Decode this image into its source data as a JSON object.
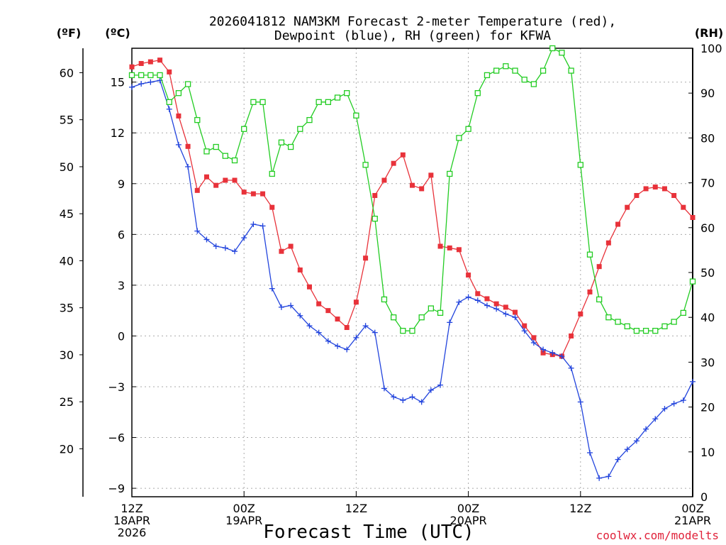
{
  "chart_data": {
    "type": "line",
    "title_line1": "2026041812 NAM3KM Forecast 2-meter Temperature (red),",
    "title_line2": "Dewpoint (blue), RH (green) for KFWA",
    "xlabel": "Forecast Time (UTC)",
    "credit": "coolwx.com/modelts",
    "units": {
      "fahrenheit": "(ºF)",
      "celsius": "(ºC)",
      "rh": "(RH)"
    },
    "x_hours_start": 0,
    "x_hours_end": 60,
    "xlim": [
      0,
      60
    ],
    "ylim_celsius": [
      -9.5,
      17
    ],
    "ylim_rh": [
      0,
      100
    ],
    "x_ticks": [
      {
        "hour": 0,
        "label1": "12Z",
        "label2": "18APR",
        "label3": "2026"
      },
      {
        "hour": 12,
        "label1": "00Z",
        "label2": "19APR",
        "label3": ""
      },
      {
        "hour": 24,
        "label1": "12Z",
        "label2": "",
        "label3": ""
      },
      {
        "hour": 36,
        "label1": "00Z",
        "label2": "20APR",
        "label3": ""
      },
      {
        "hour": 48,
        "label1": "12Z",
        "label2": "",
        "label3": ""
      },
      {
        "hour": 60,
        "label1": "00Z",
        "label2": "21APR",
        "label3": ""
      }
    ],
    "celsius_ticks": [
      "15",
      "12",
      "9",
      "6",
      "3",
      "0",
      "−3",
      "−6",
      "−9"
    ],
    "fahrenheit_ticks": [
      "60",
      "55",
      "50",
      "45",
      "40",
      "35",
      "30",
      "25",
      "20"
    ],
    "rh_ticks": [
      "100",
      "90",
      "80",
      "70",
      "60",
      "50",
      "40",
      "30",
      "20",
      "10",
      "0"
    ],
    "hours": [
      0,
      1,
      2,
      3,
      4,
      5,
      6,
      7,
      8,
      9,
      10,
      11,
      12,
      13,
      14,
      15,
      16,
      17,
      18,
      19,
      20,
      21,
      22,
      23,
      24,
      25,
      26,
      27,
      28,
      29,
      30,
      31,
      32,
      33,
      34,
      35,
      36,
      37,
      38,
      39,
      40,
      41,
      42,
      43,
      44,
      45,
      46,
      47,
      48,
      49,
      50,
      51,
      52,
      53,
      54,
      55,
      56,
      57,
      58,
      59,
      60
    ],
    "series": [
      {
        "name": "Temperature",
        "axis": "celsius",
        "color": "#e8323a",
        "marker": "filled-square",
        "values": [
          15.9,
          16.1,
          16.2,
          16.3,
          15.6,
          13.0,
          11.2,
          8.6,
          9.4,
          8.9,
          9.2,
          9.2,
          8.5,
          8.4,
          8.4,
          7.6,
          5.0,
          5.3,
          3.9,
          2.9,
          1.9,
          1.5,
          1.0,
          0.5,
          2.0,
          4.6,
          8.3,
          9.2,
          10.2,
          10.7,
          8.9,
          8.7,
          9.5,
          5.3,
          5.2,
          5.1,
          3.6,
          2.5,
          2.2,
          1.9,
          1.7,
          1.4,
          0.6,
          -0.1,
          -1.0,
          -1.1,
          -1.2,
          0.0,
          1.3,
          2.6,
          4.1,
          5.5,
          6.6,
          7.6,
          8.3,
          8.7,
          8.8,
          8.7,
          8.3,
          7.6,
          7.0
        ]
      },
      {
        "name": "Dewpoint",
        "axis": "celsius",
        "color": "#2244dd",
        "marker": "plus",
        "values": [
          14.7,
          14.9,
          15.0,
          15.1,
          13.4,
          11.3,
          10.0,
          6.2,
          5.7,
          5.3,
          5.2,
          5.0,
          5.8,
          6.6,
          6.5,
          2.8,
          1.7,
          1.8,
          1.2,
          0.6,
          0.2,
          -0.3,
          -0.6,
          -0.8,
          -0.1,
          0.6,
          0.2,
          -3.1,
          -3.6,
          -3.8,
          -3.6,
          -3.9,
          -3.2,
          -2.9,
          0.8,
          2.0,
          2.3,
          2.1,
          1.8,
          1.6,
          1.3,
          1.1,
          0.3,
          -0.4,
          -0.8,
          -1.0,
          -1.2,
          -1.9,
          -3.9,
          -6.9,
          -8.4,
          -8.3,
          -7.3,
          -6.7,
          -6.2,
          -5.5,
          -4.9,
          -4.3,
          -4.0,
          -3.8,
          -2.7
        ]
      },
      {
        "name": "RH",
        "axis": "rh",
        "color": "#22cc22",
        "marker": "open-square",
        "values": [
          94,
          94,
          94,
          94,
          88,
          90,
          92,
          84,
          77,
          78,
          76,
          75,
          82,
          88,
          88,
          72,
          79,
          78,
          82,
          84,
          88,
          88,
          89,
          90,
          85,
          74,
          62,
          44,
          40,
          37,
          37,
          40,
          42,
          41,
          72,
          80,
          82,
          90,
          94,
          95,
          96,
          95,
          93,
          92,
          95,
          100,
          99,
          95,
          74,
          54,
          44,
          40,
          39,
          38,
          37,
          37,
          37,
          38,
          39,
          41,
          48
        ]
      }
    ]
  }
}
